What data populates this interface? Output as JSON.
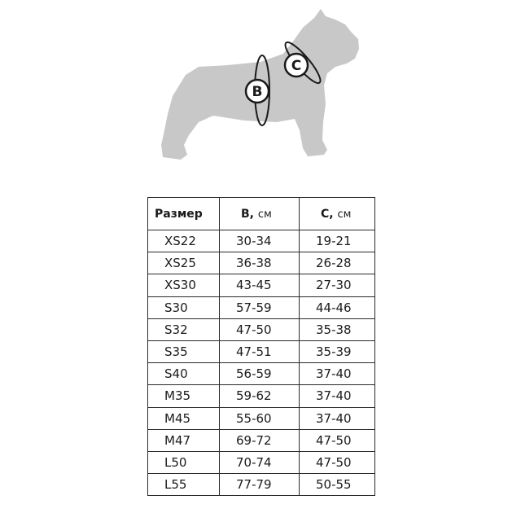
{
  "illustration": {
    "silhouette_color": "#c8c8c8",
    "labels": [
      "B",
      "C"
    ]
  },
  "table": {
    "headers": [
      {
        "main": "Размер",
        "unit": ""
      },
      {
        "main": "B,",
        "unit": "см"
      },
      {
        "main": "C,",
        "unit": "см"
      }
    ],
    "rows": [
      [
        "XS22",
        "30-34",
        "19-21"
      ],
      [
        "XS25",
        "36-38",
        "26-28"
      ],
      [
        "XS30",
        "43-45",
        "27-30"
      ],
      [
        "S30",
        "57-59",
        "44-46"
      ],
      [
        "S32",
        "47-50",
        "35-38"
      ],
      [
        "S35",
        "47-51",
        "35-39"
      ],
      [
        "S40",
        "56-59",
        "37-40"
      ],
      [
        "M35",
        "59-62",
        "37-40"
      ],
      [
        "M45",
        "55-60",
        "37-40"
      ],
      [
        "M47",
        "69-72",
        "47-50"
      ],
      [
        "L50",
        "70-74",
        "47-50"
      ],
      [
        "L55",
        "77-79",
        "50-55"
      ]
    ]
  }
}
